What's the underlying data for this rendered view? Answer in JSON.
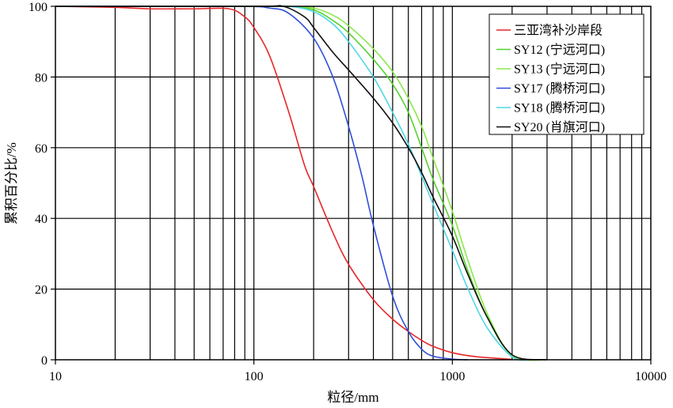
{
  "chart_data": {
    "type": "line",
    "xlabel": "粒径/mm",
    "ylabel": "累积百分比/%",
    "x_scale": "log",
    "xlim": [
      10,
      10000
    ],
    "ylim": [
      0,
      100
    ],
    "x_ticks": [
      "10",
      "100",
      "1000",
      "10000"
    ],
    "y_ticks": [
      "0",
      "20",
      "40",
      "60",
      "80",
      "100"
    ],
    "grid": true,
    "legend_position": "top-right",
    "series": [
      {
        "name": "三亚湾补沙岸段",
        "color": "#e8262a",
        "points": [
          [
            10,
            100
          ],
          [
            20,
            99.7
          ],
          [
            30,
            99.3
          ],
          [
            50,
            99.3
          ],
          [
            75,
            99.3
          ],
          [
            90,
            97
          ],
          [
            100,
            94
          ],
          [
            120,
            86
          ],
          [
            150,
            70
          ],
          [
            180,
            55
          ],
          [
            200,
            49
          ],
          [
            250,
            36
          ],
          [
            300,
            27
          ],
          [
            400,
            17
          ],
          [
            500,
            11.5
          ],
          [
            600,
            8
          ],
          [
            700,
            5.5
          ],
          [
            800,
            3.8
          ],
          [
            1000,
            2
          ],
          [
            1300,
            0.9
          ],
          [
            1800,
            0.3
          ],
          [
            2000,
            0.1
          ]
        ]
      },
      {
        "name": "SY12 (宁远河口)",
        "color": "#55d22e",
        "points": [
          [
            10,
            100
          ],
          [
            100,
            100
          ],
          [
            150,
            100
          ],
          [
            200,
            99
          ],
          [
            250,
            96
          ],
          [
            300,
            92.5
          ],
          [
            400,
            85
          ],
          [
            500,
            78
          ],
          [
            600,
            70
          ],
          [
            700,
            60
          ],
          [
            800,
            51
          ],
          [
            1000,
            38
          ],
          [
            1200,
            25
          ],
          [
            1500,
            12
          ],
          [
            2000,
            1.3
          ],
          [
            3000,
            0
          ]
        ]
      },
      {
        "name": "SY13 (宁远河口)",
        "color": "#8be84a",
        "points": [
          [
            10,
            100
          ],
          [
            100,
            100
          ],
          [
            150,
            100
          ],
          [
            200,
            99.5
          ],
          [
            250,
            97.5
          ],
          [
            300,
            94.5
          ],
          [
            400,
            88
          ],
          [
            500,
            81.5
          ],
          [
            600,
            74
          ],
          [
            700,
            66
          ],
          [
            800,
            57
          ],
          [
            1000,
            42
          ],
          [
            1200,
            28
          ],
          [
            1500,
            13
          ],
          [
            2000,
            1.2
          ],
          [
            3000,
            0
          ]
        ]
      },
      {
        "name": "SY17 (腾桥河口)",
        "color": "#2f4fd8",
        "points": [
          [
            10,
            100
          ],
          [
            80,
            100
          ],
          [
            120,
            99.5
          ],
          [
            150,
            98
          ],
          [
            200,
            91
          ],
          [
            250,
            80
          ],
          [
            300,
            66
          ],
          [
            350,
            52
          ],
          [
            400,
            38
          ],
          [
            500,
            18
          ],
          [
            600,
            8
          ],
          [
            700,
            3
          ],
          [
            800,
            1
          ],
          [
            1000,
            0.2
          ],
          [
            1200,
            0
          ]
        ]
      },
      {
        "name": "SY18 (腾桥河口)",
        "color": "#4fd6e6",
        "points": [
          [
            10,
            100
          ],
          [
            100,
            100
          ],
          [
            150,
            100
          ],
          [
            200,
            98.5
          ],
          [
            250,
            95
          ],
          [
            300,
            90
          ],
          [
            400,
            80
          ],
          [
            500,
            70
          ],
          [
            600,
            61
          ],
          [
            700,
            52
          ],
          [
            800,
            44
          ],
          [
            1000,
            31
          ],
          [
            1200,
            20
          ],
          [
            1500,
            9
          ],
          [
            2000,
            0.8
          ],
          [
            2500,
            0
          ]
        ]
      },
      {
        "name": "SY20 (肖旗河口)",
        "color": "#111111",
        "points": [
          [
            10,
            100
          ],
          [
            100,
            100
          ],
          [
            140,
            100
          ],
          [
            180,
            97
          ],
          [
            200,
            94
          ],
          [
            250,
            87
          ],
          [
            300,
            82
          ],
          [
            400,
            74
          ],
          [
            500,
            67
          ],
          [
            600,
            60
          ],
          [
            700,
            53
          ],
          [
            800,
            46
          ],
          [
            1000,
            35
          ],
          [
            1200,
            24
          ],
          [
            1500,
            12
          ],
          [
            2000,
            1.4
          ],
          [
            3000,
            0
          ]
        ]
      }
    ]
  }
}
